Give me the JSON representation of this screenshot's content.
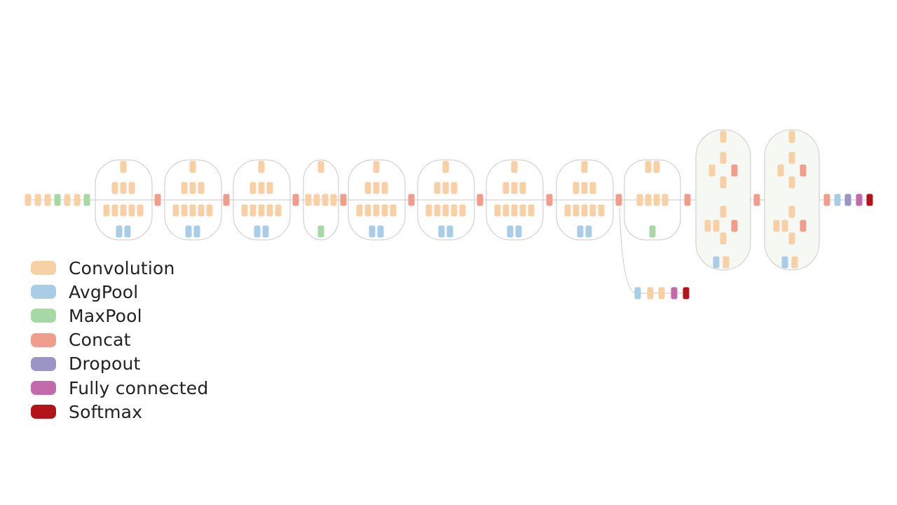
{
  "colors": {
    "convolution": "#f7d0a6",
    "avgpool": "#a9cde6",
    "maxpool": "#a6d9a4",
    "concat": "#f09d8e",
    "dropout": "#9a94c7",
    "fully_connected": "#c26aac",
    "softmax": "#b3141c",
    "line": "#c9c9c9"
  },
  "legend": [
    {
      "key": "convolution",
      "label": "Convolution"
    },
    {
      "key": "avgpool",
      "label": "AvgPool"
    },
    {
      "key": "maxpool",
      "label": "MaxPool"
    },
    {
      "key": "concat",
      "label": "Concat"
    },
    {
      "key": "dropout",
      "label": "Dropout"
    },
    {
      "key": "fully_connected",
      "label": "Fully connected"
    },
    {
      "key": "softmax",
      "label": "Softmax"
    }
  ],
  "network": {
    "stem": [
      "convolution",
      "convolution",
      "convolution",
      "maxpool",
      "convolution",
      "convolution",
      "maxpool"
    ],
    "modules": [
      "module-a",
      "module-a",
      "module-a",
      "reduction-a",
      "module-b",
      "module-b",
      "module-b",
      "module-b",
      "reduction-b",
      "module-c",
      "module-c"
    ],
    "aux_head": [
      "avgpool",
      "convolution",
      "convolution",
      "fully_connected",
      "softmax"
    ],
    "final_head": [
      "concat",
      "avgpool",
      "dropout",
      "fully_connected",
      "softmax"
    ]
  }
}
